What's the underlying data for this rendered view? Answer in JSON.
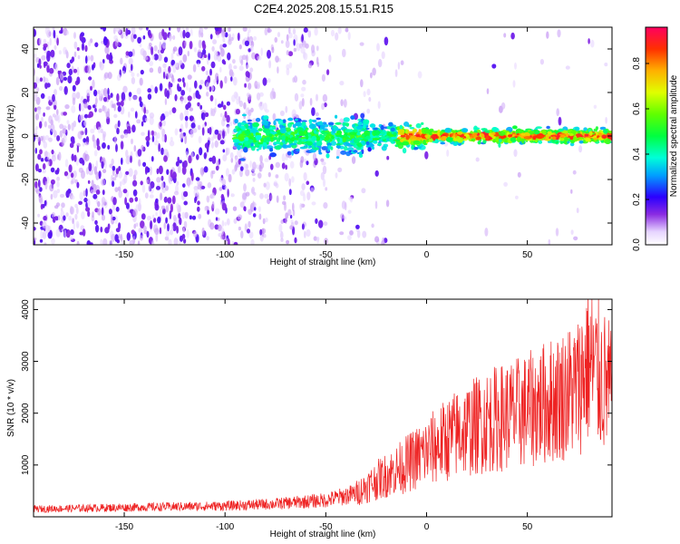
{
  "title": "C2E4.2025.208.15.51.R15",
  "colors": {
    "snr_line": "#ee2222",
    "axis": "#000000"
  },
  "chart_data": [
    {
      "type": "heatmap",
      "xlabel": "Height of straight line (km)",
      "ylabel": "Frequency (Hz)",
      "xlim": [
        -195,
        92
      ],
      "ylim": [
        -50,
        50
      ],
      "xticks": [
        -150,
        -100,
        -50,
        0,
        50
      ],
      "yticks": [
        -40,
        -20,
        0,
        20,
        40
      ],
      "grid": false,
      "colorbar": {
        "label": "Normalized spectral amplitude",
        "range": [
          0,
          0.96
        ],
        "ticks": [
          0.0,
          0.2,
          0.4,
          0.6,
          0.8
        ]
      },
      "ridge": {
        "frequency_hz": 0,
        "onset_km": -95,
        "peak_band_start_km": -15
      }
    },
    {
      "type": "line",
      "xlabel": "Height of straight line (km)",
      "ylabel": "SNR (10 * v/v)",
      "xlim": [
        -195,
        92
      ],
      "ylim": [
        0,
        4200
      ],
      "xticks": [
        -150,
        -100,
        -50,
        0,
        50
      ],
      "yticks": [
        1000,
        2000,
        3000,
        4000
      ],
      "grid": false,
      "series": [
        {
          "x": [
            -195,
            -150,
            -100,
            -75,
            -50,
            -35,
            -25,
            -15,
            0,
            15,
            30,
            50,
            65,
            75,
            80,
            92
          ],
          "y": [
            150,
            180,
            210,
            250,
            320,
            450,
            700,
            900,
            1250,
            1600,
            1850,
            2050,
            2300,
            2500,
            3000,
            2400
          ]
        }
      ]
    }
  ]
}
